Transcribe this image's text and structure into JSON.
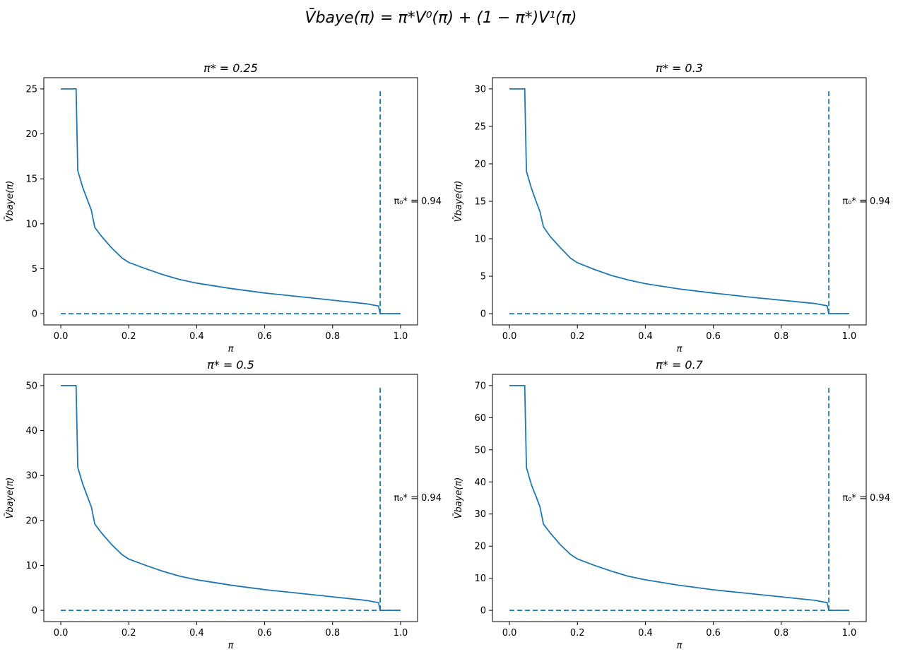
{
  "figure": {
    "suptitle": "V̄baye(π) = π*V⁰(π) + (1 − π*)V¹(π)"
  },
  "chart_data": [
    {
      "type": "line",
      "title": "π* = 0.25",
      "xlabel": "π",
      "ylabel": "V̄baye(π)",
      "xlim": [
        -0.05,
        1.05
      ],
      "ylim": [
        -1.25,
        26.25
      ],
      "xticks": [
        0.0,
        0.2,
        0.4,
        0.6,
        0.8,
        1.0
      ],
      "xtick_labels": [
        "0.0",
        "0.2",
        "0.4",
        "0.6",
        "0.8",
        "1.0"
      ],
      "yticks": [
        0,
        5,
        10,
        15,
        20,
        25
      ],
      "ytick_labels": [
        "0",
        "5",
        "10",
        "15",
        "20",
        "25"
      ],
      "annotation": "π₀* = 0.94",
      "annotation_x": 0.98,
      "annotation_y": 12.5,
      "series": [
        {
          "style": "solid",
          "x": [
            0.0,
            0.045,
            0.05,
            0.065,
            0.08,
            0.09,
            0.1,
            0.12,
            0.15,
            0.18,
            0.2,
            0.25,
            0.3,
            0.35,
            0.4,
            0.5,
            0.6,
            0.7,
            0.8,
            0.9,
            0.935,
            0.94,
            1.0
          ],
          "y": [
            25.0,
            25.0,
            15.9,
            14.0,
            12.5,
            11.5,
            9.6,
            8.6,
            7.3,
            6.2,
            5.7,
            5.0,
            4.35,
            3.8,
            3.4,
            2.8,
            2.3,
            1.9,
            1.5,
            1.1,
            0.85,
            0.0,
            0.0
          ]
        },
        {
          "style": "dashed",
          "x": [
            0.0,
            1.0
          ],
          "y": [
            0.0,
            0.0
          ]
        },
        {
          "style": "dashed",
          "x": [
            0.94,
            0.94
          ],
          "y": [
            0.0,
            25.0
          ]
        }
      ]
    },
    {
      "type": "line",
      "title": "π* = 0.3",
      "xlabel": "π",
      "ylabel": "V̄baye(π)",
      "xlim": [
        -0.05,
        1.05
      ],
      "ylim": [
        -1.5,
        31.5
      ],
      "xticks": [
        0.0,
        0.2,
        0.4,
        0.6,
        0.8,
        1.0
      ],
      "xtick_labels": [
        "0.0",
        "0.2",
        "0.4",
        "0.6",
        "0.8",
        "1.0"
      ],
      "yticks": [
        0,
        5,
        10,
        15,
        20,
        25,
        30
      ],
      "ytick_labels": [
        "0",
        "5",
        "10",
        "15",
        "20",
        "25",
        "30"
      ],
      "annotation": "π₀* = 0.94",
      "annotation_x": 0.98,
      "annotation_y": 15.0,
      "series": [
        {
          "style": "solid",
          "x": [
            0.0,
            0.045,
            0.05,
            0.065,
            0.08,
            0.09,
            0.1,
            0.12,
            0.15,
            0.18,
            0.2,
            0.25,
            0.3,
            0.35,
            0.4,
            0.5,
            0.6,
            0.7,
            0.8,
            0.9,
            0.935,
            0.94,
            1.0
          ],
          "y": [
            30.0,
            30.0,
            19.0,
            16.7,
            14.8,
            13.6,
            11.6,
            10.3,
            8.8,
            7.4,
            6.8,
            5.9,
            5.1,
            4.5,
            4.0,
            3.3,
            2.75,
            2.25,
            1.8,
            1.35,
            1.05,
            0.0,
            0.0
          ]
        },
        {
          "style": "dashed",
          "x": [
            0.0,
            1.0
          ],
          "y": [
            0.0,
            0.0
          ]
        },
        {
          "style": "dashed",
          "x": [
            0.94,
            0.94
          ],
          "y": [
            0.0,
            30.0
          ]
        }
      ]
    },
    {
      "type": "line",
      "title": "π* = 0.5",
      "xlabel": "π",
      "ylabel": "V̄baye(π)",
      "xlim": [
        -0.05,
        1.05
      ],
      "ylim": [
        -2.5,
        52.5
      ],
      "xticks": [
        0.0,
        0.2,
        0.4,
        0.6,
        0.8,
        1.0
      ],
      "xtick_labels": [
        "0.0",
        "0.2",
        "0.4",
        "0.6",
        "0.8",
        "1.0"
      ],
      "yticks": [
        0,
        10,
        20,
        30,
        40,
        50
      ],
      "ytick_labels": [
        "0",
        "10",
        "20",
        "30",
        "40",
        "50"
      ],
      "annotation": "π₀* = 0.94",
      "annotation_x": 0.98,
      "annotation_y": 25.0,
      "series": [
        {
          "style": "solid",
          "x": [
            0.0,
            0.045,
            0.05,
            0.065,
            0.08,
            0.09,
            0.1,
            0.12,
            0.15,
            0.18,
            0.2,
            0.25,
            0.3,
            0.35,
            0.4,
            0.5,
            0.6,
            0.7,
            0.8,
            0.9,
            0.935,
            0.94,
            1.0
          ],
          "y": [
            50.0,
            50.0,
            31.8,
            28.0,
            25.0,
            23.0,
            19.2,
            17.2,
            14.6,
            12.4,
            11.4,
            10.0,
            8.7,
            7.6,
            6.8,
            5.6,
            4.6,
            3.8,
            3.0,
            2.2,
            1.7,
            0.0,
            0.0
          ]
        },
        {
          "style": "dashed",
          "x": [
            0.0,
            1.0
          ],
          "y": [
            0.0,
            0.0
          ]
        },
        {
          "style": "dashed",
          "x": [
            0.94,
            0.94
          ],
          "y": [
            0.0,
            50.0
          ]
        }
      ]
    },
    {
      "type": "line",
      "title": "π* = 0.7",
      "xlabel": "π",
      "ylabel": "V̄baye(π)",
      "xlim": [
        -0.05,
        1.05
      ],
      "ylim": [
        -3.5,
        73.5
      ],
      "xticks": [
        0.0,
        0.2,
        0.4,
        0.6,
        0.8,
        1.0
      ],
      "xtick_labels": [
        "0.0",
        "0.2",
        "0.4",
        "0.6",
        "0.8",
        "1.0"
      ],
      "yticks": [
        0,
        10,
        20,
        30,
        40,
        50,
        60,
        70
      ],
      "ytick_labels": [
        "0",
        "10",
        "20",
        "30",
        "40",
        "50",
        "60",
        "70"
      ],
      "annotation": "π₀* = 0.94",
      "annotation_x": 0.98,
      "annotation_y": 35.0,
      "series": [
        {
          "style": "solid",
          "x": [
            0.0,
            0.045,
            0.05,
            0.065,
            0.08,
            0.09,
            0.1,
            0.12,
            0.15,
            0.18,
            0.2,
            0.25,
            0.3,
            0.35,
            0.4,
            0.5,
            0.6,
            0.7,
            0.8,
            0.9,
            0.935,
            0.94,
            1.0
          ],
          "y": [
            70.0,
            70.0,
            44.5,
            39.0,
            35.0,
            32.2,
            26.9,
            24.1,
            20.4,
            17.4,
            16.0,
            14.0,
            12.2,
            10.6,
            9.5,
            7.8,
            6.4,
            5.3,
            4.2,
            3.1,
            2.4,
            0.0,
            0.0
          ]
        },
        {
          "style": "dashed",
          "x": [
            0.0,
            1.0
          ],
          "y": [
            0.0,
            0.0
          ]
        },
        {
          "style": "dashed",
          "x": [
            0.94,
            0.94
          ],
          "y": [
            0.0,
            70.0
          ]
        }
      ]
    }
  ]
}
